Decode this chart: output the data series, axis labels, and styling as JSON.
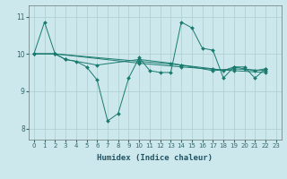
{
  "xlabel": "Humidex (Indice chaleur)",
  "background_color": "#cce8ec",
  "line_color": "#1a7a6e",
  "grid_color": "#aacccc",
  "xlim": [
    -0.5,
    23.5
  ],
  "ylim": [
    7.7,
    11.3
  ],
  "yticks": [
    8,
    9,
    10,
    11
  ],
  "xticks": [
    0,
    1,
    2,
    3,
    4,
    5,
    6,
    7,
    8,
    9,
    10,
    11,
    12,
    13,
    14,
    15,
    16,
    17,
    18,
    19,
    20,
    21,
    22,
    23
  ],
  "series1": [
    [
      0,
      10.0
    ],
    [
      1,
      10.85
    ],
    [
      2,
      10.0
    ],
    [
      3,
      9.85
    ],
    [
      4,
      9.8
    ],
    [
      5,
      9.65
    ],
    [
      6,
      9.3
    ],
    [
      7,
      8.2
    ],
    [
      8,
      8.4
    ],
    [
      9,
      9.35
    ],
    [
      10,
      9.9
    ],
    [
      11,
      9.55
    ],
    [
      12,
      9.5
    ],
    [
      13,
      9.5
    ],
    [
      14,
      10.85
    ],
    [
      15,
      10.7
    ],
    [
      16,
      10.15
    ],
    [
      17,
      10.1
    ],
    [
      18,
      9.35
    ],
    [
      19,
      9.65
    ],
    [
      20,
      9.65
    ],
    [
      21,
      9.35
    ],
    [
      22,
      9.6
    ]
  ],
  "series2": [
    [
      0,
      10.0
    ],
    [
      2,
      10.0
    ],
    [
      3,
      9.85
    ],
    [
      6,
      9.7
    ],
    [
      10,
      9.85
    ],
    [
      13,
      9.75
    ],
    [
      14,
      9.7
    ],
    [
      17,
      9.6
    ],
    [
      18,
      9.55
    ],
    [
      19,
      9.65
    ],
    [
      20,
      9.6
    ],
    [
      21,
      9.55
    ],
    [
      22,
      9.6
    ]
  ],
  "series3": [
    [
      0,
      10.0
    ],
    [
      2,
      10.0
    ],
    [
      10,
      9.8
    ],
    [
      14,
      9.7
    ],
    [
      17,
      9.55
    ],
    [
      19,
      9.6
    ],
    [
      22,
      9.55
    ]
  ],
  "series4": [
    [
      0,
      10.0
    ],
    [
      2,
      10.0
    ],
    [
      10,
      9.75
    ],
    [
      14,
      9.65
    ],
    [
      19,
      9.55
    ],
    [
      22,
      9.5
    ]
  ]
}
